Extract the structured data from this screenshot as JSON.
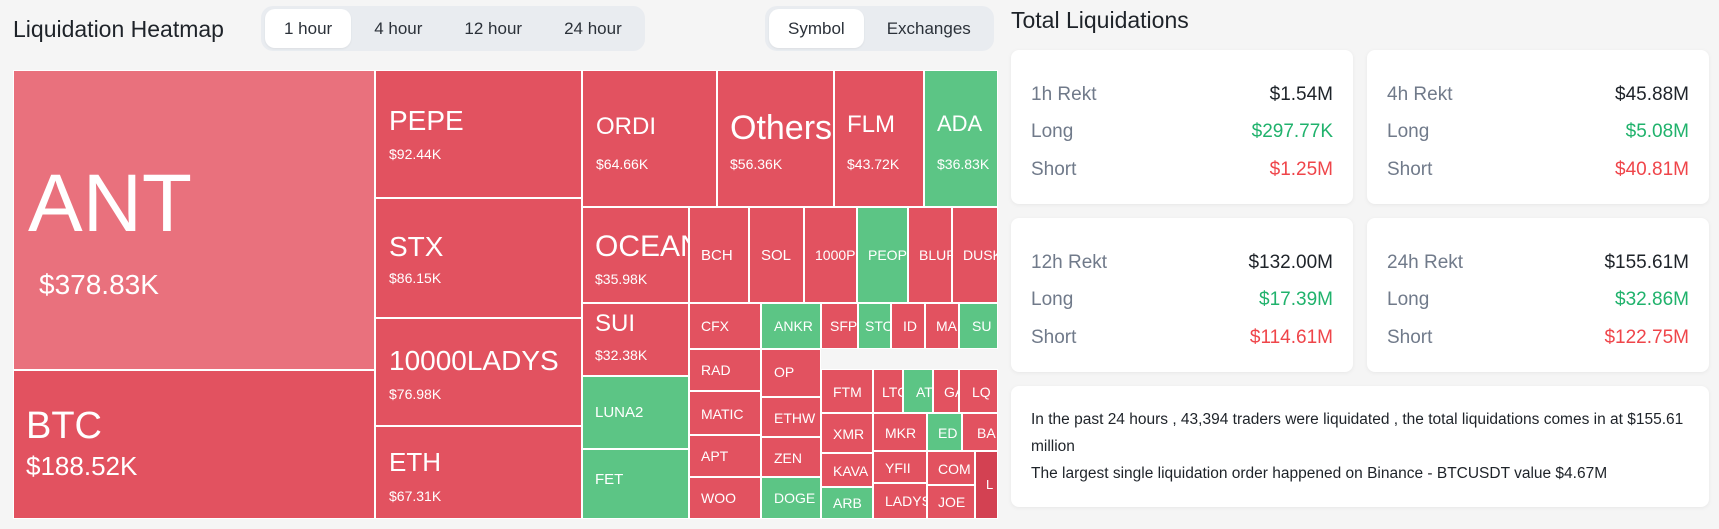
{
  "heatmap": {
    "title": "Liquidation Heatmap",
    "time_tabs": [
      "1 hour",
      "4 hour",
      "12 hour",
      "24 hour"
    ],
    "active_time_tab": "1 hour",
    "view_tabs": [
      "Symbol",
      "Exchanges"
    ],
    "active_view_tab": "Symbol",
    "colors": {
      "long_liquidations": "#e25260",
      "short_liquidations": "#5cc585",
      "dominant": "#e9717d"
    },
    "tiles": [
      {
        "name": "ANT",
        "value": "$378.83K",
        "color": "pink"
      },
      {
        "name": "BTC",
        "value": "$188.52K",
        "color": "red"
      },
      {
        "name": "PEPE",
        "value": "$92.44K",
        "color": "red"
      },
      {
        "name": "STX",
        "value": "$86.15K",
        "color": "red"
      },
      {
        "name": "10000LADYS",
        "value": "$76.98K",
        "color": "red"
      },
      {
        "name": "ETH",
        "value": "$67.31K",
        "color": "red"
      },
      {
        "name": "ORDI",
        "value": "$64.66K",
        "color": "red"
      },
      {
        "name": "Others",
        "value": "$56.36K",
        "color": "red"
      },
      {
        "name": "FLM",
        "value": "$43.72K",
        "color": "red"
      },
      {
        "name": "ADA",
        "value": "$36.83K",
        "color": "green"
      },
      {
        "name": "OCEAN",
        "value": "$35.98K",
        "color": "red"
      },
      {
        "name": "SUI",
        "value": "$32.38K",
        "color": "red"
      },
      {
        "name": "LUNA2",
        "value": "",
        "color": "green"
      },
      {
        "name": "FET",
        "value": "",
        "color": "green"
      },
      {
        "name": "BCH",
        "value": "",
        "color": "red"
      },
      {
        "name": "SOL",
        "value": "",
        "color": "red"
      },
      {
        "name": "1000P",
        "value": "",
        "color": "red"
      },
      {
        "name": "PEOP",
        "value": "",
        "color": "green"
      },
      {
        "name": "BLUR",
        "value": "",
        "color": "red"
      },
      {
        "name": "DUSK",
        "value": "",
        "color": "red"
      },
      {
        "name": "CFX",
        "value": "",
        "color": "red"
      },
      {
        "name": "ANKR",
        "value": "",
        "color": "green"
      },
      {
        "name": "SFP",
        "value": "",
        "color": "red"
      },
      {
        "name": "STO",
        "value": "",
        "color": "green"
      },
      {
        "name": "ID",
        "value": "",
        "color": "red"
      },
      {
        "name": "MA",
        "value": "",
        "color": "red"
      },
      {
        "name": "SU",
        "value": "",
        "color": "green"
      },
      {
        "name": "RAD",
        "value": "",
        "color": "red"
      },
      {
        "name": "OP",
        "value": "",
        "color": "red"
      },
      {
        "name": "FTM",
        "value": "",
        "color": "red"
      },
      {
        "name": "LTC",
        "value": "",
        "color": "red"
      },
      {
        "name": "AT",
        "value": "",
        "color": "green"
      },
      {
        "name": "GA",
        "value": "",
        "color": "red"
      },
      {
        "name": "LQ",
        "value": "",
        "color": "red"
      },
      {
        "name": "MATIC",
        "value": "",
        "color": "red"
      },
      {
        "name": "ETHW",
        "value": "",
        "color": "red"
      },
      {
        "name": "XMR",
        "value": "",
        "color": "red"
      },
      {
        "name": "APT",
        "value": "",
        "color": "red"
      },
      {
        "name": "ZEN",
        "value": "",
        "color": "red"
      },
      {
        "name": "MKR",
        "value": "",
        "color": "red"
      },
      {
        "name": "ED",
        "value": "",
        "color": "green"
      },
      {
        "name": "BA",
        "value": "",
        "color": "red"
      },
      {
        "name": "KAVA",
        "value": "",
        "color": "red"
      },
      {
        "name": "YFII",
        "value": "",
        "color": "red"
      },
      {
        "name": "COM",
        "value": "",
        "color": "red"
      },
      {
        "name": "WOO",
        "value": "",
        "color": "red"
      },
      {
        "name": "DOGE",
        "value": "",
        "color": "green"
      },
      {
        "name": "ARB",
        "value": "",
        "color": "green"
      },
      {
        "name": "LADYS",
        "value": "",
        "color": "red"
      },
      {
        "name": "JOE",
        "value": "",
        "color": "red"
      },
      {
        "name": "L",
        "value": "",
        "color": "dark"
      }
    ]
  },
  "totals": {
    "title": "Total Liquidations",
    "cards": [
      {
        "period": "1h Rekt",
        "total": "$1.54M",
        "long_label": "Long",
        "long": "$297.77K",
        "short_label": "Short",
        "short": "$1.25M"
      },
      {
        "period": "4h Rekt",
        "total": "$45.88M",
        "long_label": "Long",
        "long": "$5.08M",
        "short_label": "Short",
        "short": "$40.81M"
      },
      {
        "period": "12h Rekt",
        "total": "$132.00M",
        "long_label": "Long",
        "long": "$17.39M",
        "short_label": "Short",
        "short": "$114.61M"
      },
      {
        "period": "24h Rekt",
        "total": "$155.61M",
        "long_label": "Long",
        "long": "$32.86M",
        "short_label": "Short",
        "short": "$122.75M"
      }
    ],
    "summary_line1": "In the past 24 hours , 43,394 traders were liquidated , the total liquidations comes in at $155.61 million",
    "summary_line2": "The largest single liquidation order happened on Binance - BTCUSDT value $4.67M"
  }
}
